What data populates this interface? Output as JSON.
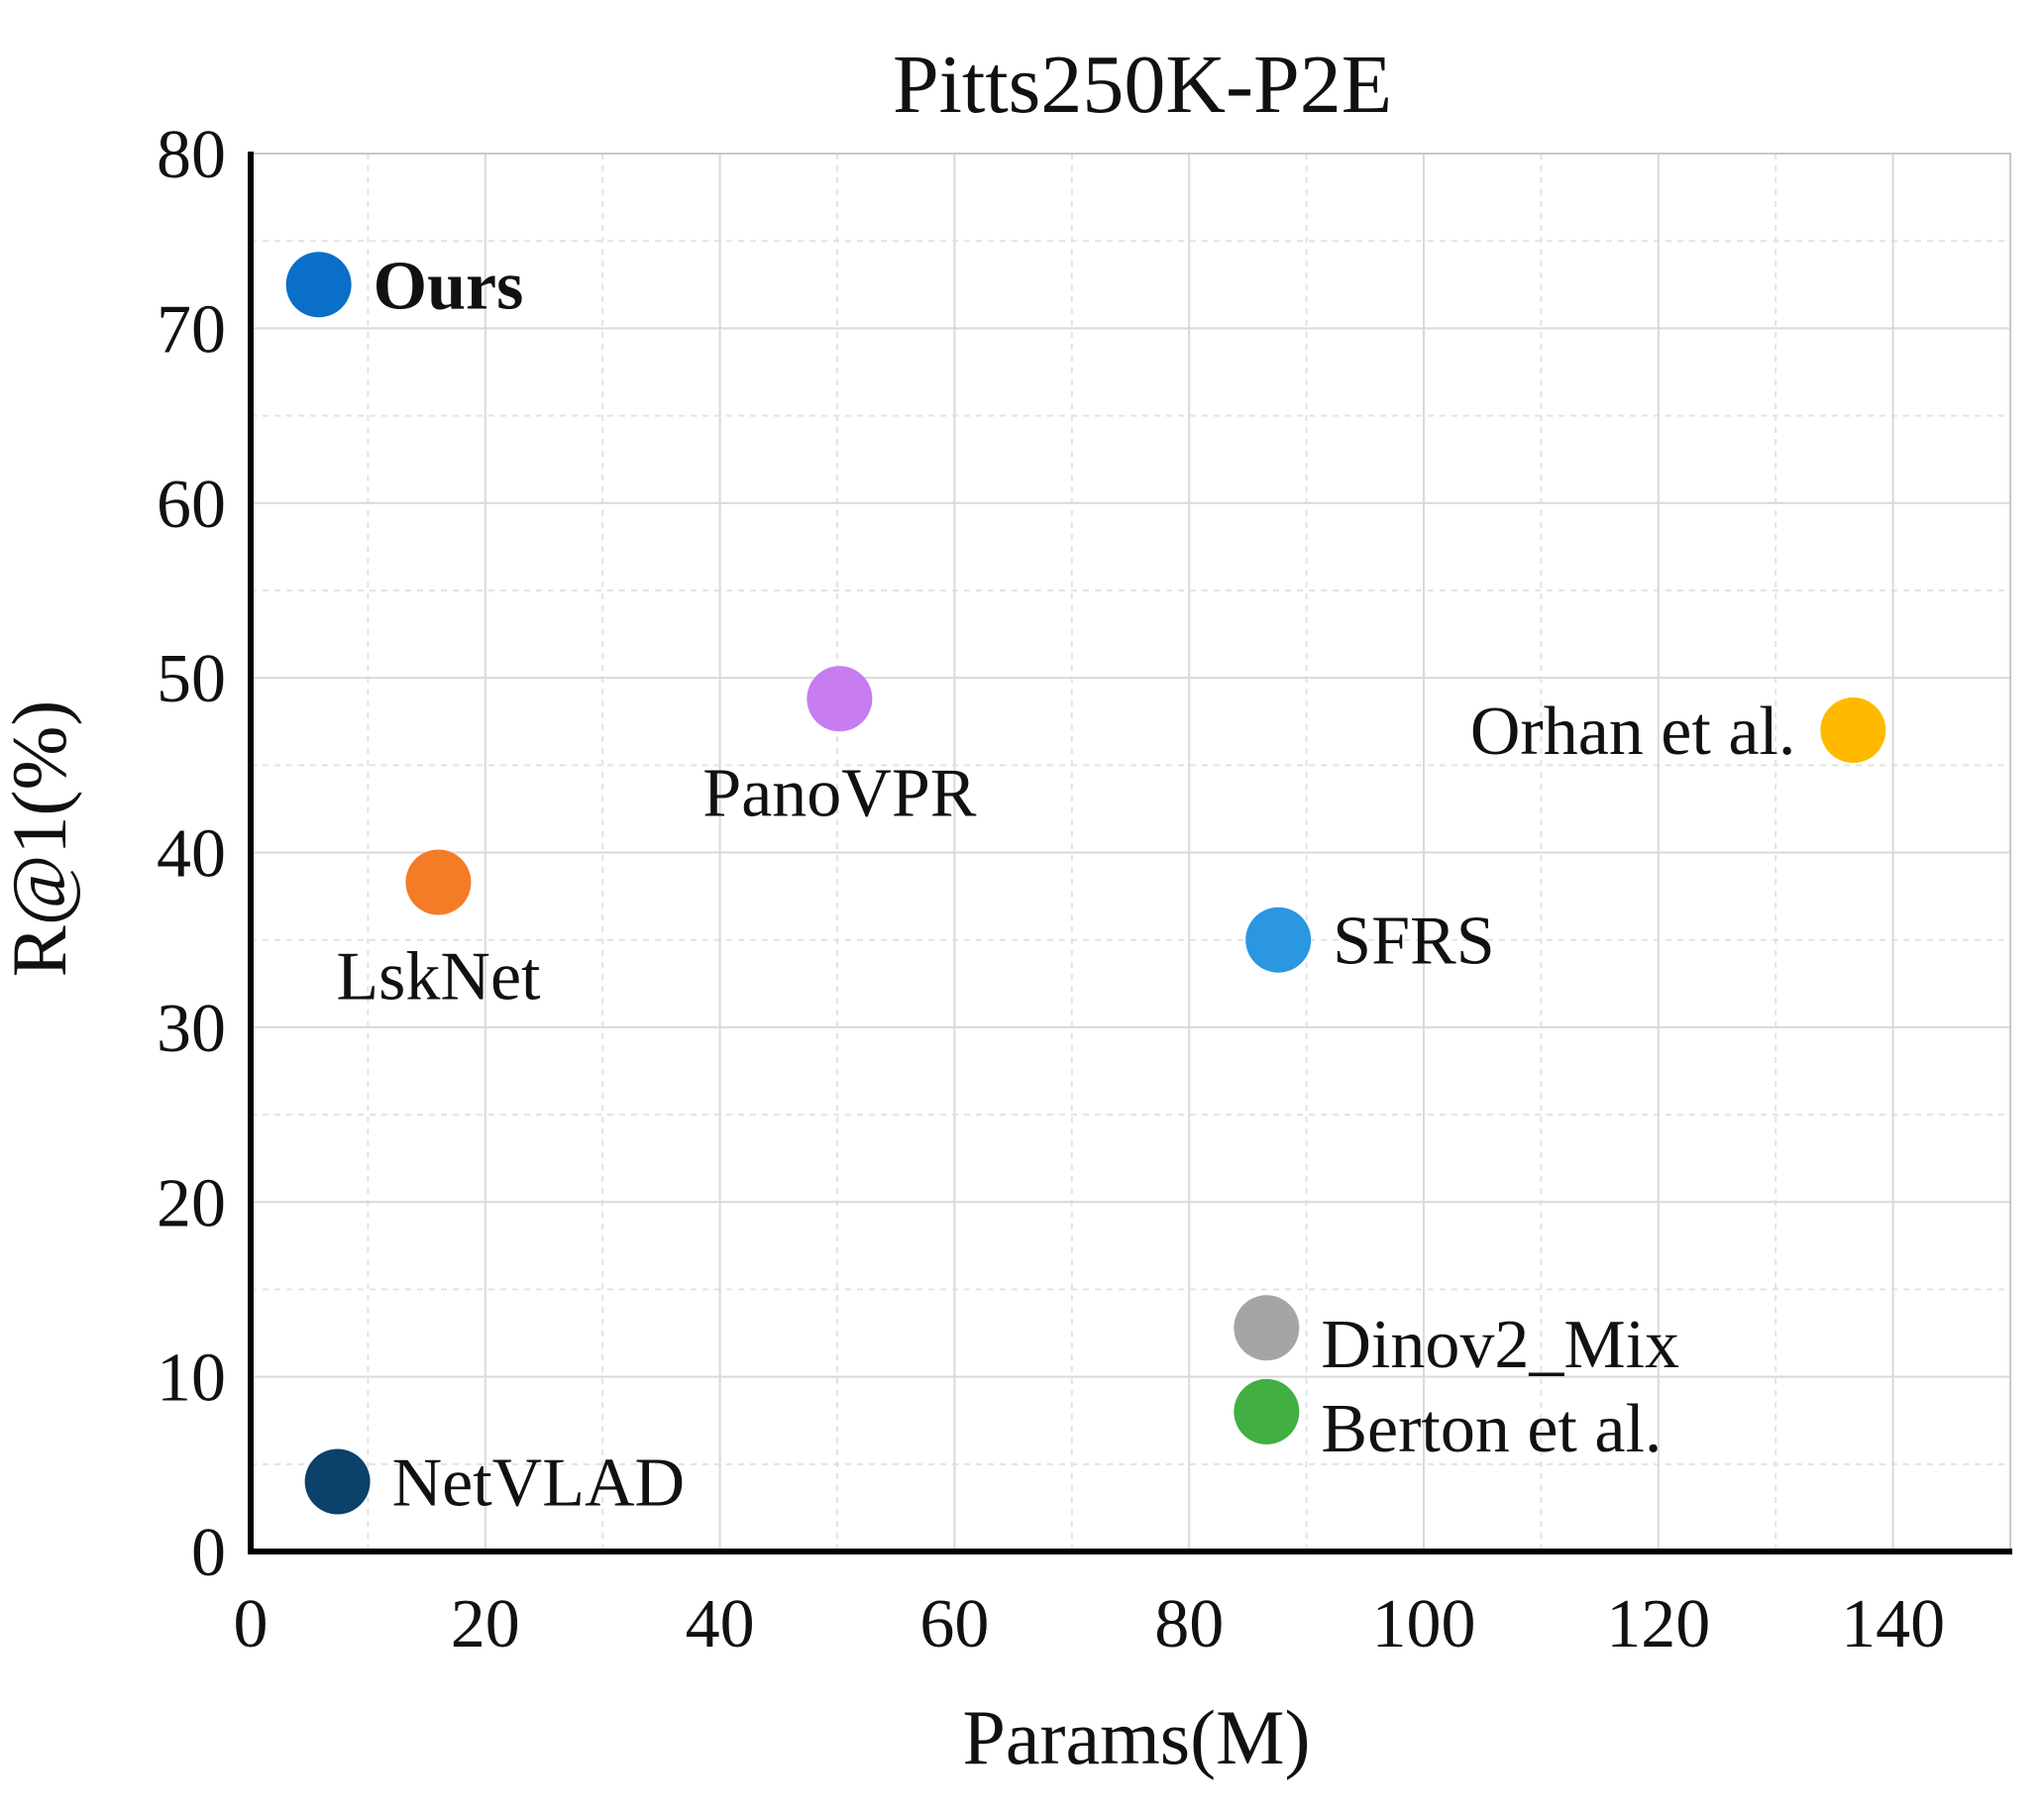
{
  "chart_data": {
    "type": "scatter",
    "title": "Pitts250K-P2E",
    "xlabel": "Params(M)",
    "ylabel": "R@1(%)",
    "xlim": [
      0,
      150
    ],
    "ylim": [
      0,
      80
    ],
    "xticks": [
      0,
      20,
      40,
      60,
      80,
      100,
      120,
      140
    ],
    "yticks": [
      0,
      10,
      20,
      30,
      40,
      50,
      60,
      70,
      80
    ],
    "grid": true,
    "points": [
      {
        "name": "Ours",
        "x": 5.8,
        "y": 72.5,
        "color": "#0a6fc9",
        "bold": true,
        "label_position": "right"
      },
      {
        "name": "PanoVPR",
        "x": 50.2,
        "y": 48.8,
        "color": "#c77cf0",
        "bold": false,
        "label_position": "below"
      },
      {
        "name": "Orhan et al.",
        "x": 136.6,
        "y": 47.0,
        "color": "#ffba00",
        "bold": false,
        "label_position": "left"
      },
      {
        "name": "LskNet",
        "x": 16.0,
        "y": 38.3,
        "color": "#f57c27",
        "bold": false,
        "label_position": "below"
      },
      {
        "name": "SFRS",
        "x": 87.6,
        "y": 35.0,
        "color": "#2a97e0",
        "bold": false,
        "label_position": "right"
      },
      {
        "name": "Dinov2_Mix",
        "x": 86.6,
        "y": 12.8,
        "color": "#a5a5a5",
        "bold": false,
        "label_position": "right-low"
      },
      {
        "name": "Berton et al.",
        "x": 86.6,
        "y": 8.0,
        "color": "#41af41",
        "bold": false,
        "label_position": "right-low"
      },
      {
        "name": "NetVLAD",
        "x": 7.4,
        "y": 4.0,
        "color": "#0c4169",
        "bold": false,
        "label_position": "right"
      }
    ]
  }
}
